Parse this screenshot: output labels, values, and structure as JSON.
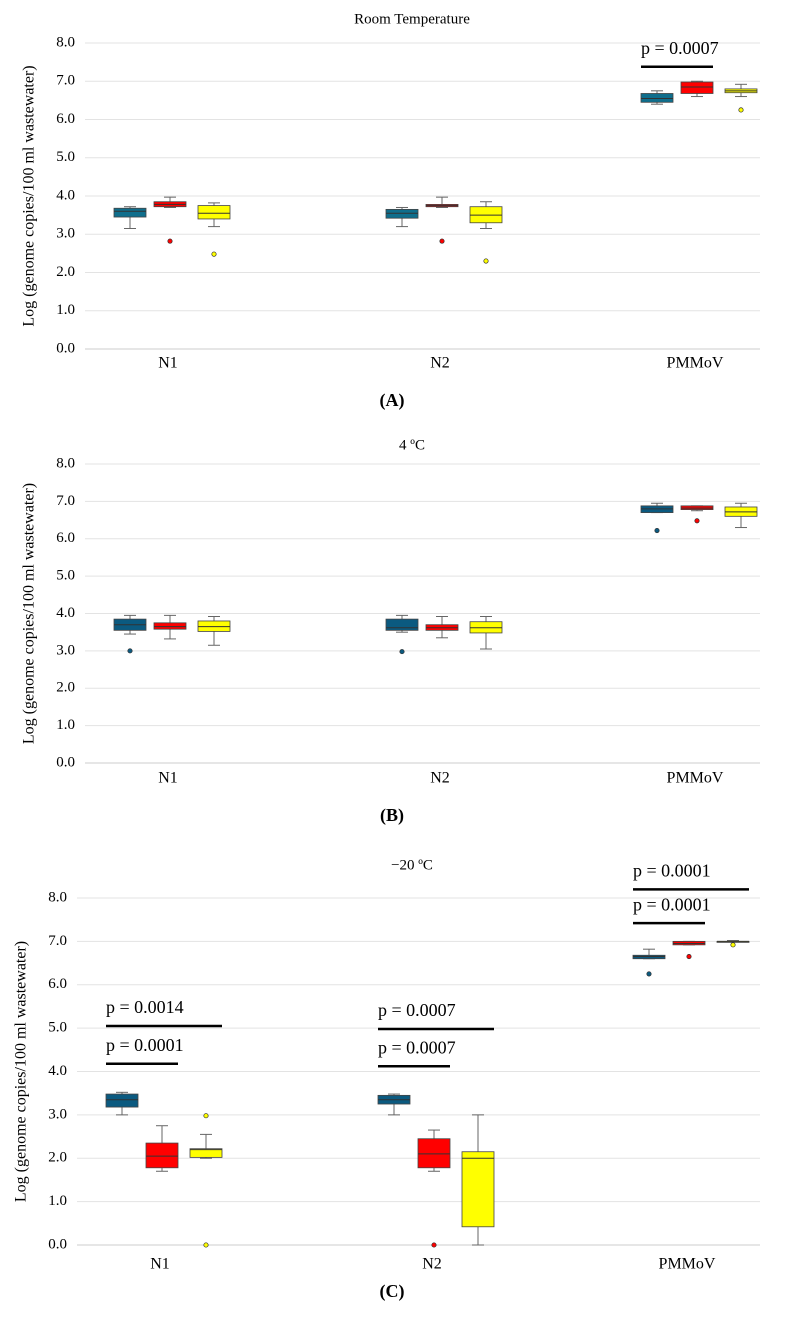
{
  "chart_data": [
    {
      "type": "box",
      "title": "Room Temperature",
      "label": "(A)",
      "y_label": "Log (genome copies/100 ml wastewater)",
      "categories": [
        "N1",
        "N2",
        "PMMoV"
      ],
      "ylim": [
        0,
        8
      ],
      "yticks": [
        {
          "value": 0,
          "label": "0.0"
        },
        {
          "value": 1,
          "label": "1.0"
        },
        {
          "value": 2,
          "label": "2.0"
        },
        {
          "value": 3,
          "label": "3.0"
        },
        {
          "value": 4,
          "label": "4.0"
        },
        {
          "value": 5,
          "label": "5.0"
        },
        {
          "value": 6,
          "label": "6.0"
        },
        {
          "value": 7,
          "label": "7.0"
        },
        {
          "value": 8,
          "label": "8.0"
        }
      ],
      "grid": true,
      "series": [
        {
          "color": "#0f6e8c",
          "values": [
            {
              "min": 3.15,
              "q1": 3.45,
              "median": 3.6,
              "q3": 3.68,
              "max": 3.72
            },
            {
              "min": 3.2,
              "q1": 3.42,
              "median": 3.55,
              "q3": 3.65,
              "max": 3.7
            },
            {
              "min": 6.4,
              "q1": 6.45,
              "median": 6.55,
              "q3": 6.68,
              "max": 6.75
            }
          ]
        },
        {
          "color": "#ff0000",
          "values": [
            {
              "min": 3.7,
              "q1": 3.72,
              "median": 3.78,
              "q3": 3.85,
              "max": 3.97,
              "outliers": [
                2.82
              ]
            },
            {
              "min": 3.7,
              "q1": 3.72,
              "median": 3.75,
              "q3": 3.78,
              "max": 3.97,
              "outliers": [
                2.82
              ]
            },
            {
              "min": 6.6,
              "q1": 6.68,
              "median": 6.85,
              "q3": 6.98,
              "max": 7.0
            }
          ]
        },
        {
          "color": "#ffff00",
          "values": [
            {
              "min": 3.2,
              "q1": 3.4,
              "median": 3.55,
              "q3": 3.75,
              "max": 3.82,
              "outliers": [
                2.48
              ]
            },
            {
              "min": 3.15,
              "q1": 3.3,
              "median": 3.5,
              "q3": 3.72,
              "max": 3.85,
              "outliers": [
                2.3
              ]
            },
            {
              "min": 6.6,
              "q1": 6.7,
              "median": 6.75,
              "q3": 6.8,
              "max": 6.92,
              "outliers": [
                6.25
              ]
            }
          ]
        }
      ],
      "annotations": [
        "p = 0.0007"
      ]
    },
    {
      "type": "box",
      "title": "4 ºC",
      "label": "(B)",
      "y_label": "Log (genome copies/100 ml wastewater)",
      "categories": [
        "N1",
        "N2",
        "PMMoV"
      ],
      "ylim": [
        0,
        8
      ],
      "yticks": [
        {
          "value": 0,
          "label": "0.0"
        },
        {
          "value": 1,
          "label": "1.0"
        },
        {
          "value": 2,
          "label": "2.0"
        },
        {
          "value": 3,
          "label": "3.0"
        },
        {
          "value": 4,
          "label": "4.0"
        },
        {
          "value": 5,
          "label": "5.0"
        },
        {
          "value": 6,
          "label": "6.0"
        },
        {
          "value": 7,
          "label": "7.0"
        },
        {
          "value": 8,
          "label": "8.0"
        }
      ],
      "grid": true,
      "series": [
        {
          "color": "#0b5a80",
          "values": [
            {
              "min": 3.45,
              "q1": 3.55,
              "median": 3.7,
              "q3": 3.85,
              "max": 3.95,
              "outliers": [
                3.0
              ]
            },
            {
              "min": 3.5,
              "q1": 3.55,
              "median": 3.62,
              "q3": 3.85,
              "max": 3.95,
              "outliers": [
                2.98
              ]
            },
            {
              "min": 6.7,
              "q1": 6.7,
              "median": 6.8,
              "q3": 6.88,
              "max": 6.95,
              "outliers": [
                6.22
              ]
            }
          ]
        },
        {
          "color": "#ff0000",
          "values": [
            {
              "min": 3.32,
              "q1": 3.58,
              "median": 3.65,
              "q3": 3.75,
              "max": 3.95
            },
            {
              "min": 3.35,
              "q1": 3.55,
              "median": 3.62,
              "q3": 3.7,
              "max": 3.92
            },
            {
              "min": 6.75,
              "q1": 6.78,
              "median": 6.82,
              "q3": 6.88,
              "max": 6.88,
              "outliers": [
                6.48
              ]
            }
          ]
        },
        {
          "color": "#ffff00",
          "values": [
            {
              "min": 3.15,
              "q1": 3.52,
              "median": 3.65,
              "q3": 3.8,
              "max": 3.92
            },
            {
              "min": 3.05,
              "q1": 3.48,
              "median": 3.62,
              "q3": 3.78,
              "max": 3.92
            },
            {
              "min": 6.3,
              "q1": 6.6,
              "median": 6.72,
              "q3": 6.85,
              "max": 6.95
            }
          ]
        }
      ]
    },
    {
      "type": "box",
      "title": "−20 ºC",
      "label": "(C)",
      "y_label": "Log (genome copies/100 ml wastewater)",
      "categories": [
        "N1",
        "N2",
        "PMMoV"
      ],
      "ylim": [
        0,
        8
      ],
      "yticks": [
        {
          "value": 0,
          "label": "0.0"
        },
        {
          "value": 1,
          "label": "1.0"
        },
        {
          "value": 2,
          "label": "2.0"
        },
        {
          "value": 3,
          "label": "3.0"
        },
        {
          "value": 4,
          "label": "4.0"
        },
        {
          "value": 5,
          "label": "5.0"
        },
        {
          "value": 6,
          "label": "6.0"
        },
        {
          "value": 7,
          "label": "7.0"
        },
        {
          "value": 8,
          "label": "8.0"
        }
      ],
      "grid": true,
      "series": [
        {
          "color": "#0b5a80",
          "values": [
            {
              "min": 3.0,
              "q1": 3.18,
              "median": 3.35,
              "q3": 3.48,
              "max": 3.52
            },
            {
              "min": 3.0,
              "q1": 3.25,
              "median": 3.35,
              "q3": 3.45,
              "max": 3.48
            },
            {
              "min": 6.6,
              "q1": 6.6,
              "median": 6.65,
              "q3": 6.68,
              "max": 6.82,
              "outliers": [
                6.25
              ]
            }
          ]
        },
        {
          "color": "#ff0000",
          "values": [
            {
              "min": 1.7,
              "q1": 1.78,
              "median": 2.05,
              "q3": 2.35,
              "max": 2.75
            },
            {
              "min": 1.7,
              "q1": 1.78,
              "median": 2.1,
              "q3": 2.45,
              "max": 2.65,
              "outliers": [
                0.0
              ]
            },
            {
              "min": 6.92,
              "q1": 6.92,
              "median": 6.95,
              "q3": 7.0,
              "max": 7.0,
              "outliers": [
                6.65
              ]
            }
          ]
        },
        {
          "color": "#ffff00",
          "values": [
            {
              "min": 2.0,
              "q1": 2.02,
              "median": 2.2,
              "q3": 2.22,
              "max": 2.55,
              "outliers": [
                2.98,
                0.0
              ]
            },
            {
              "min": 0.0,
              "q1": 0.42,
              "median": 2.0,
              "q3": 2.15,
              "max": 3.0
            },
            {
              "min": 7.0,
              "q1": 7.0,
              "median": 7.0,
              "q3": 7.0,
              "max": 7.02,
              "outliers": [
                6.92
              ]
            }
          ]
        }
      ],
      "annotations": [
        "p = 0.0001",
        "p = 0.0014",
        "p = 0.0007",
        "p = 0.0007",
        "p = 0.0001",
        "p = 0.0001"
      ]
    }
  ]
}
